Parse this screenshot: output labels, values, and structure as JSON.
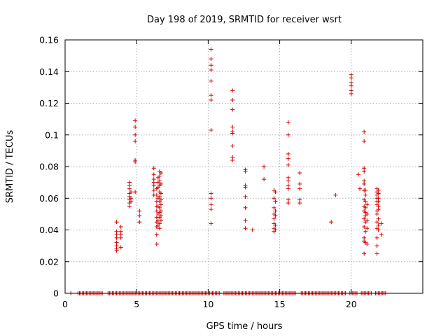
{
  "chart_data": {
    "type": "scatter",
    "title": "Day 198 of 2019, SRMTID for receiver wsrt",
    "xlabel": "GPS time / hours",
    "ylabel": "SRMTID / TECUs",
    "xlim": [
      0,
      25
    ],
    "ylim": [
      0,
      0.16
    ],
    "xticks": [
      0,
      5,
      10,
      15,
      20
    ],
    "xtick_labels": [
      "0",
      "5",
      "10",
      "15",
      "20"
    ],
    "yticks": [
      0,
      0.02,
      0.04,
      0.06,
      0.08,
      0.1,
      0.12,
      0.14,
      0.16
    ],
    "ytick_labels": [
      "0",
      "0.02",
      "0.04",
      "0.06",
      "0.08",
      "0.1",
      "0.12",
      "0.14",
      "0.16"
    ],
    "grid": true,
    "marker": "+",
    "color": "#d40000",
    "series": [
      {
        "name": "SRMTID",
        "points": [
          [
            3.6,
            0.045
          ],
          [
            3.6,
            0.039
          ],
          [
            3.6,
            0.037
          ],
          [
            3.6,
            0.035
          ],
          [
            3.6,
            0.032
          ],
          [
            3.6,
            0.03
          ],
          [
            3.6,
            0.028
          ],
          [
            3.6,
            0.027
          ],
          [
            3.9,
            0.042
          ],
          [
            3.9,
            0.039
          ],
          [
            3.9,
            0.037
          ],
          [
            3.9,
            0.035
          ],
          [
            3.9,
            0.029
          ],
          [
            4.5,
            0.07
          ],
          [
            4.5,
            0.068
          ],
          [
            4.5,
            0.066
          ],
          [
            4.5,
            0.063
          ],
          [
            4.5,
            0.061
          ],
          [
            4.5,
            0.059
          ],
          [
            4.5,
            0.057
          ],
          [
            4.5,
            0.055
          ],
          [
            4.6,
            0.064
          ],
          [
            4.6,
            0.06
          ],
          [
            4.6,
            0.058
          ],
          [
            4.9,
            0.109
          ],
          [
            4.9,
            0.105
          ],
          [
            4.9,
            0.1
          ],
          [
            4.9,
            0.096
          ],
          [
            4.9,
            0.084
          ],
          [
            4.9,
            0.083
          ],
          [
            4.9,
            0.064
          ],
          [
            5.2,
            0.052
          ],
          [
            5.2,
            0.049
          ],
          [
            5.2,
            0.045
          ],
          [
            6.2,
            0.079
          ],
          [
            6.2,
            0.075
          ],
          [
            6.2,
            0.072
          ],
          [
            6.2,
            0.07
          ],
          [
            6.2,
            0.068
          ],
          [
            6.2,
            0.065
          ],
          [
            6.2,
            0.062
          ],
          [
            6.4,
            0.066
          ],
          [
            6.4,
            0.062
          ],
          [
            6.4,
            0.058
          ],
          [
            6.4,
            0.055
          ],
          [
            6.4,
            0.052
          ],
          [
            6.4,
            0.048
          ],
          [
            6.4,
            0.045
          ],
          [
            6.4,
            0.042
          ],
          [
            6.4,
            0.037
          ],
          [
            6.4,
            0.031
          ],
          [
            6.5,
            0.073
          ],
          [
            6.5,
            0.07
          ],
          [
            6.5,
            0.067
          ],
          [
            6.5,
            0.06
          ],
          [
            6.5,
            0.055
          ],
          [
            6.5,
            0.05
          ],
          [
            6.5,
            0.046
          ],
          [
            6.5,
            0.043
          ],
          [
            6.6,
            0.077
          ],
          [
            6.6,
            0.074
          ],
          [
            6.6,
            0.071
          ],
          [
            6.6,
            0.068
          ],
          [
            6.6,
            0.064
          ],
          [
            6.6,
            0.061
          ],
          [
            6.6,
            0.058
          ],
          [
            6.6,
            0.054
          ],
          [
            6.6,
            0.051
          ],
          [
            6.6,
            0.048
          ],
          [
            6.6,
            0.044
          ],
          [
            6.6,
            0.041
          ],
          [
            6.7,
            0.076
          ],
          [
            6.7,
            0.069
          ],
          [
            6.7,
            0.063
          ],
          [
            6.7,
            0.059
          ],
          [
            6.7,
            0.056
          ],
          [
            6.7,
            0.052
          ],
          [
            6.7,
            0.049
          ],
          [
            6.7,
            0.046
          ],
          [
            10.2,
            0.154
          ],
          [
            10.2,
            0.148
          ],
          [
            10.2,
            0.144
          ],
          [
            10.2,
            0.141
          ],
          [
            10.2,
            0.134
          ],
          [
            10.2,
            0.125
          ],
          [
            10.2,
            0.122
          ],
          [
            10.2,
            0.103
          ],
          [
            10.2,
            0.063
          ],
          [
            10.2,
            0.06
          ],
          [
            10.2,
            0.056
          ],
          [
            10.2,
            0.053
          ],
          [
            10.2,
            0.044
          ],
          [
            11.7,
            0.128
          ],
          [
            11.7,
            0.122
          ],
          [
            11.7,
            0.116
          ],
          [
            11.7,
            0.105
          ],
          [
            11.7,
            0.102
          ],
          [
            11.7,
            0.101
          ],
          [
            11.7,
            0.093
          ],
          [
            11.7,
            0.086
          ],
          [
            11.7,
            0.084
          ],
          [
            12.6,
            0.078
          ],
          [
            12.6,
            0.077
          ],
          [
            12.6,
            0.068
          ],
          [
            12.6,
            0.067
          ],
          [
            12.6,
            0.061
          ],
          [
            12.6,
            0.054
          ],
          [
            12.6,
            0.046
          ],
          [
            12.6,
            0.041
          ],
          [
            13.1,
            0.04
          ],
          [
            13.9,
            0.08
          ],
          [
            13.9,
            0.072
          ],
          [
            14.6,
            0.065
          ],
          [
            14.6,
            0.06
          ],
          [
            14.6,
            0.054
          ],
          [
            14.6,
            0.05
          ],
          [
            14.6,
            0.047
          ],
          [
            14.6,
            0.044
          ],
          [
            14.6,
            0.041
          ],
          [
            14.6,
            0.039
          ],
          [
            14.7,
            0.064
          ],
          [
            14.7,
            0.058
          ],
          [
            14.7,
            0.052
          ],
          [
            14.7,
            0.049
          ],
          [
            14.7,
            0.043
          ],
          [
            14.7,
            0.04
          ],
          [
            15.6,
            0.108
          ],
          [
            15.6,
            0.1
          ],
          [
            15.6,
            0.088
          ],
          [
            15.6,
            0.085
          ],
          [
            15.6,
            0.081
          ],
          [
            15.6,
            0.073
          ],
          [
            15.6,
            0.071
          ],
          [
            15.6,
            0.068
          ],
          [
            15.6,
            0.066
          ],
          [
            15.6,
            0.059
          ],
          [
            15.6,
            0.057
          ],
          [
            16.4,
            0.076
          ],
          [
            16.4,
            0.069
          ],
          [
            16.4,
            0.066
          ],
          [
            16.4,
            0.059
          ],
          [
            16.4,
            0.057
          ],
          [
            18.6,
            0.045
          ],
          [
            18.9,
            0.062
          ],
          [
            20.0,
            0.138
          ],
          [
            20.0,
            0.136
          ],
          [
            20.0,
            0.133
          ],
          [
            20.0,
            0.131
          ],
          [
            20.0,
            0.128
          ],
          [
            20.0,
            0.126
          ],
          [
            20.5,
            0.075
          ],
          [
            20.6,
            0.066
          ],
          [
            20.9,
            0.102
          ],
          [
            20.9,
            0.096
          ],
          [
            20.9,
            0.079
          ],
          [
            20.9,
            0.077
          ],
          [
            20.9,
            0.071
          ],
          [
            20.9,
            0.069
          ],
          [
            20.9,
            0.065
          ],
          [
            20.9,
            0.059
          ],
          [
            20.9,
            0.055
          ],
          [
            20.9,
            0.052
          ],
          [
            20.9,
            0.047
          ],
          [
            20.9,
            0.042
          ],
          [
            20.9,
            0.035
          ],
          [
            20.9,
            0.033
          ],
          [
            20.9,
            0.025
          ],
          [
            21.0,
            0.065
          ],
          [
            21.0,
            0.062
          ],
          [
            21.0,
            0.058
          ],
          [
            21.0,
            0.054
          ],
          [
            21.0,
            0.051
          ],
          [
            21.0,
            0.049
          ],
          [
            21.0,
            0.045
          ],
          [
            21.0,
            0.039
          ],
          [
            21.0,
            0.032
          ],
          [
            21.1,
            0.056
          ],
          [
            21.1,
            0.05
          ],
          [
            21.1,
            0.046
          ],
          [
            21.1,
            0.041
          ],
          [
            21.1,
            0.031
          ],
          [
            21.8,
            0.066
          ],
          [
            21.8,
            0.064
          ],
          [
            21.8,
            0.062
          ],
          [
            21.8,
            0.06
          ],
          [
            21.8,
            0.058
          ],
          [
            21.8,
            0.056
          ],
          [
            21.8,
            0.052
          ],
          [
            21.8,
            0.05
          ],
          [
            21.8,
            0.045
          ],
          [
            21.8,
            0.041
          ],
          [
            21.8,
            0.035
          ],
          [
            21.8,
            0.03
          ],
          [
            21.8,
            0.025
          ],
          [
            21.9,
            0.065
          ],
          [
            21.9,
            0.063
          ],
          [
            21.9,
            0.06
          ],
          [
            21.9,
            0.058
          ],
          [
            21.9,
            0.055
          ],
          [
            21.9,
            0.053
          ],
          [
            21.9,
            0.047
          ],
          [
            21.9,
            0.043
          ],
          [
            21.9,
            0.04
          ],
          [
            22.1,
            0.044
          ],
          [
            22.1,
            0.037
          ]
        ],
        "zero_intervals": [
          [
            0.4,
            0.45
          ],
          [
            0.9,
            2.6
          ],
          [
            3.0,
            3.7
          ],
          [
            3.8,
            10.8
          ],
          [
            11.1,
            16.1
          ],
          [
            16.5,
            19.6
          ],
          [
            19.9,
            20.4
          ],
          [
            20.7,
            21.4
          ],
          [
            21.7,
            22.4
          ]
        ],
        "zero_step": 0.1
      }
    ]
  }
}
